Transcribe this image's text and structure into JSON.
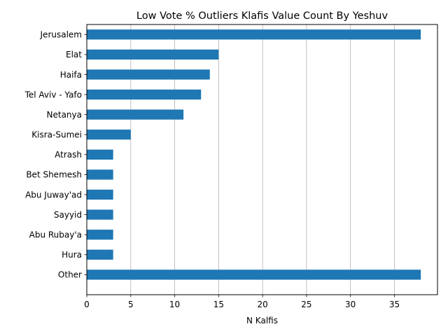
{
  "chart_data": {
    "type": "bar",
    "orientation": "horizontal",
    "title": "Low Vote % Outliers Klafis Value Count By Yeshuv",
    "xlabel": "N Kalfis",
    "ylabel": "",
    "xlim": [
      0,
      39.9
    ],
    "xticks": [
      0,
      5,
      10,
      15,
      20,
      25,
      30,
      35
    ],
    "grid": "x",
    "bar_color": "#1f77b4",
    "categories": [
      "Jerusalem",
      "Elat",
      "Haifa",
      "Tel Aviv - Yafo",
      "Netanya",
      "Kisra-Sumei",
      "Atrash",
      "Bet Shemesh",
      "Abu Juway'ad",
      "Sayyid",
      "Abu Rubay'a",
      "Hura",
      "Other"
    ],
    "values": [
      38,
      15,
      14,
      13,
      11,
      5,
      3,
      3,
      3,
      3,
      3,
      3,
      38
    ]
  }
}
